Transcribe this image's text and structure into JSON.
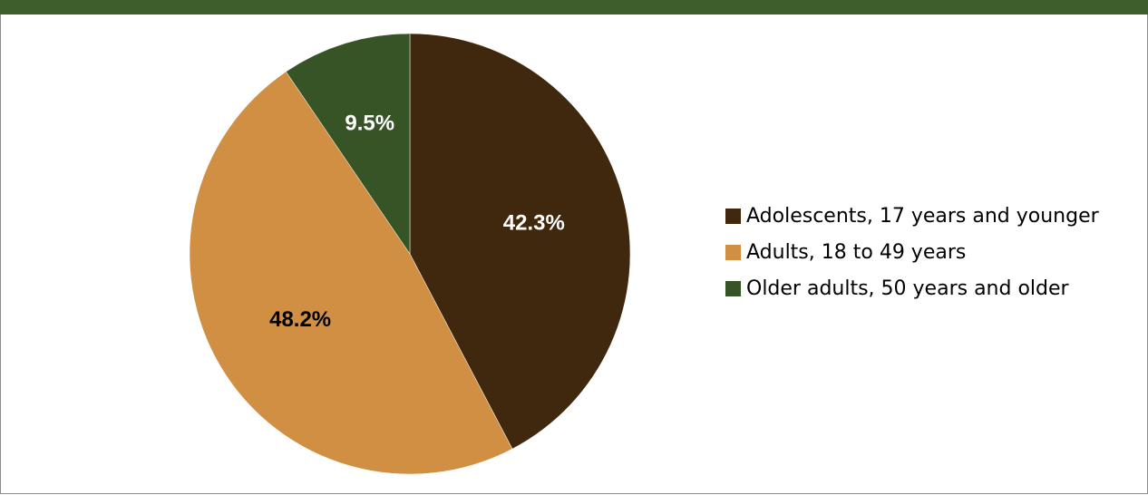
{
  "topbar_color": "#3e5f2c",
  "chart_data": {
    "type": "pie",
    "title": "",
    "start_angle_deg": 0,
    "direction": "clockwise",
    "legend_position": "right",
    "slices": [
      {
        "label": "Adolescents, 17 years and younger",
        "value": 42.3,
        "value_label": "42.3%",
        "color": "#40280f",
        "label_color": "#ffffff"
      },
      {
        "label": "Adults, 18 to 49 years",
        "value": 48.2,
        "value_label": "48.2%",
        "color": "#d08f42",
        "label_color": "#000000"
      },
      {
        "label": "Older adults, 50 years and older",
        "value": 9.5,
        "value_label": "9.5%",
        "color": "#375426",
        "label_color": "#ffffff"
      }
    ]
  }
}
